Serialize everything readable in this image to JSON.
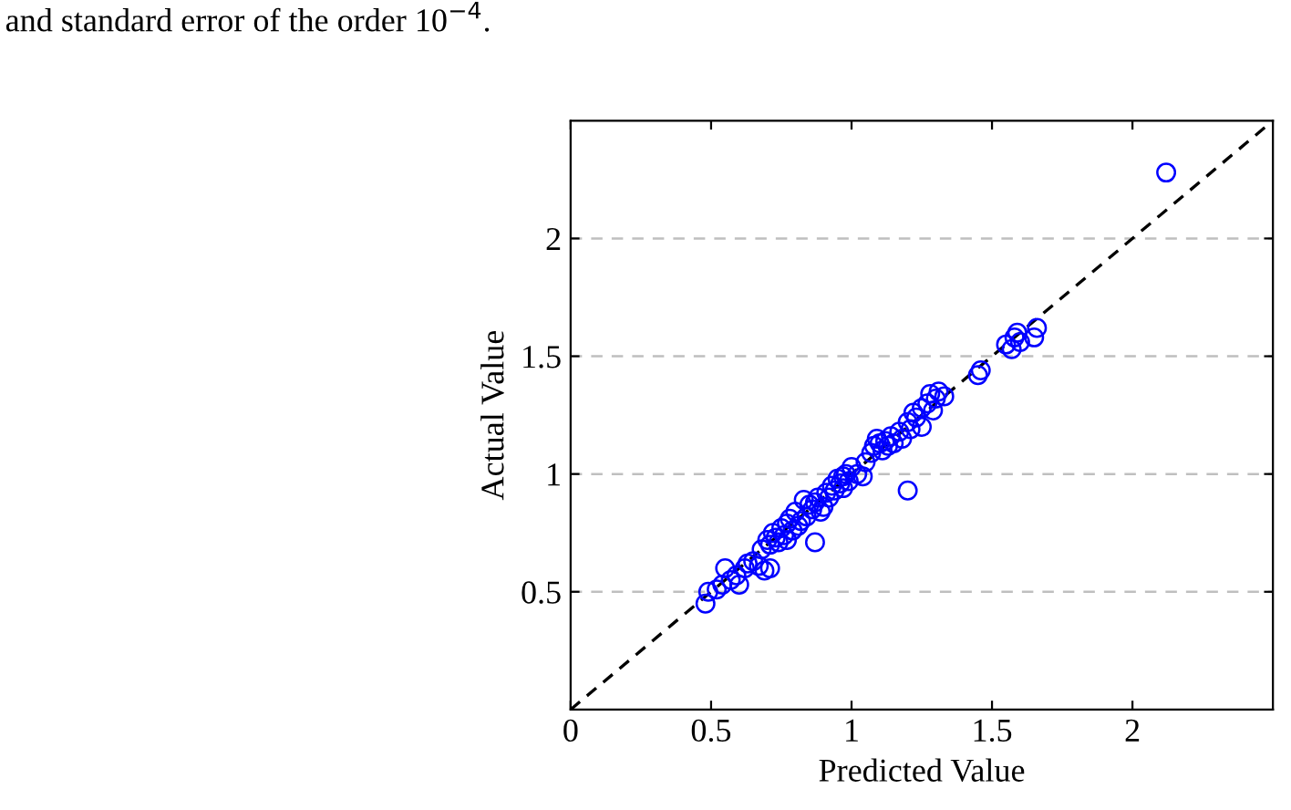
{
  "chart_data": {
    "type": "scatter",
    "xlabel": "Predicted Value",
    "ylabel": "Actual Value",
    "annotations": [
      "and standard error of the order 10$^{−4}$."
    ],
    "xlim": [
      0,
      2.5
    ],
    "ylim": [
      0,
      2.5
    ],
    "xticks": [
      0,
      0.5,
      1,
      1.5,
      2
    ],
    "yticks": [
      0.5,
      1,
      1.5,
      2
    ],
    "grid": "y",
    "marker": "circle",
    "series": [
      {
        "color": "#0000ff",
        "x": [
          0.48,
          0.49,
          0.52,
          0.54,
          0.55,
          0.57,
          0.59,
          0.6,
          0.62,
          0.63,
          0.65,
          0.67,
          0.68,
          0.69,
          0.7,
          0.71,
          0.71,
          0.72,
          0.73,
          0.74,
          0.75,
          0.76,
          0.77,
          0.77,
          0.78,
          0.79,
          0.8,
          0.81,
          0.82,
          0.83,
          0.84,
          0.85,
          0.86,
          0.87,
          0.87,
          0.88,
          0.89,
          0.9,
          0.91,
          0.92,
          0.93,
          0.94,
          0.95,
          0.96,
          0.97,
          0.97,
          0.98,
          0.99,
          1.0,
          1.02,
          1.04,
          1.05,
          1.07,
          1.08,
          1.09,
          1.1,
          1.11,
          1.12,
          1.13,
          1.14,
          1.15,
          1.17,
          1.18,
          1.2,
          1.2,
          1.21,
          1.22,
          1.23,
          1.25,
          1.25,
          1.27,
          1.28,
          1.29,
          1.3,
          1.31,
          1.33,
          1.45,
          1.46,
          1.55,
          1.57,
          1.58,
          1.59,
          1.6,
          1.65,
          1.66,
          2.12
        ],
        "values": [
          0.45,
          0.5,
          0.51,
          0.53,
          0.6,
          0.55,
          0.57,
          0.53,
          0.6,
          0.62,
          0.63,
          0.61,
          0.68,
          0.59,
          0.72,
          0.6,
          0.7,
          0.75,
          0.73,
          0.71,
          0.77,
          0.74,
          0.79,
          0.72,
          0.81,
          0.76,
          0.84,
          0.78,
          0.8,
          0.89,
          0.82,
          0.87,
          0.85,
          0.71,
          0.88,
          0.9,
          0.84,
          0.86,
          0.92,
          0.9,
          0.95,
          0.93,
          0.98,
          0.96,
          0.94,
          0.99,
          1.0,
          0.97,
          1.03,
          1.0,
          0.99,
          1.05,
          1.09,
          1.12,
          1.15,
          1.13,
          1.1,
          1.14,
          1.12,
          1.16,
          1.13,
          1.18,
          1.15,
          0.93,
          1.22,
          1.19,
          1.26,
          1.24,
          1.2,
          1.28,
          1.3,
          1.34,
          1.27,
          1.32,
          1.35,
          1.33,
          1.42,
          1.44,
          1.55,
          1.53,
          1.58,
          1.6,
          1.56,
          1.58,
          1.62,
          2.28
        ]
      },
      {
        "type": "line",
        "color": "#000000",
        "line_style": "dashed",
        "marker": "none",
        "x": [
          0,
          2.5
        ],
        "values": [
          0,
          2.5
        ]
      }
    ]
  }
}
